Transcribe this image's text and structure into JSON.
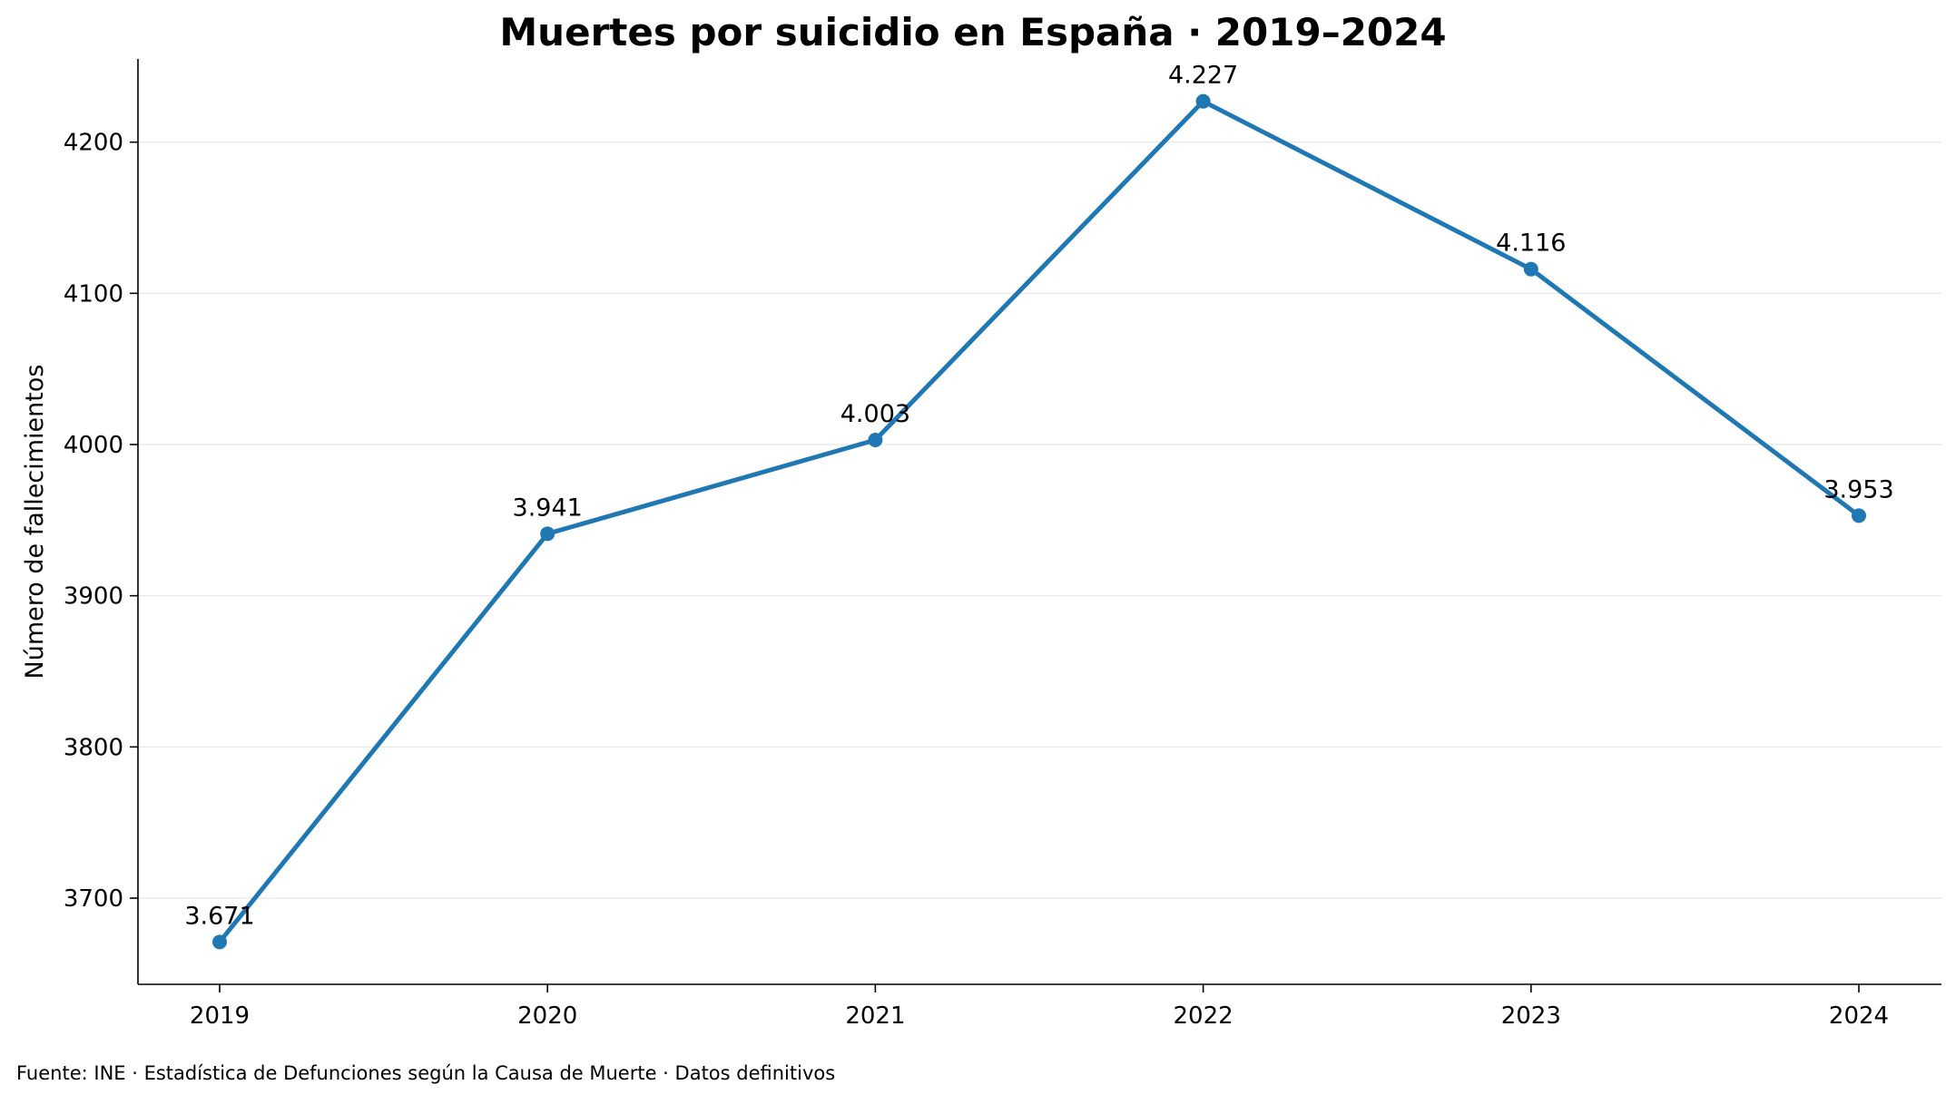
{
  "chart_data": {
    "type": "line",
    "title": "Muertes por suicidio en España · 2019–2024",
    "xlabel": "",
    "ylabel": "Número de fallecimientos",
    "x": [
      2019,
      2020,
      2021,
      2022,
      2023,
      2024
    ],
    "categories": [
      "2019",
      "2020",
      "2021",
      "2022",
      "2023",
      "2024"
    ],
    "series": [
      {
        "values": [
          3671,
          3941,
          4003,
          4227,
          4116,
          3953
        ],
        "labels": [
          "3.671",
          "3.941",
          "4.003",
          "4.227",
          "4.116",
          "3.953"
        ],
        "color": "#1f77b4"
      }
    ],
    "yticks": [
      3700,
      3800,
      3900,
      4000,
      4100,
      4200
    ],
    "ylim": [
      3643,
      4255
    ],
    "grid": "horizontal",
    "source": "Fuente: INE · Estadística de Defunciones según la Causa de Muerte · Datos definitivos"
  }
}
